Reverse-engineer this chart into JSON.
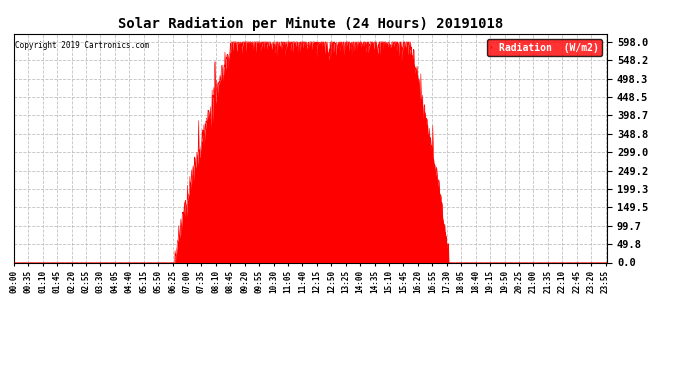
{
  "title": "Solar Radiation per Minute (24 Hours) 20191018",
  "copyright_text": "Copyright 2019 Cartronics.com",
  "legend_label": "Radiation  (W/m2)",
  "bar_color": "#ff0000",
  "background_color": "#ffffff",
  "grid_color": "#bbbbbb",
  "y_tick_values": [
    0.0,
    49.8,
    99.7,
    149.5,
    199.3,
    249.2,
    299.0,
    348.8,
    398.7,
    448.5,
    498.3,
    548.2,
    598.0
  ],
  "ylim": [
    0.0,
    620.0
  ],
  "total_minutes": 1440,
  "solar_start_minute": 390,
  "solar_rise_end_minute": 490,
  "solar_plateau_start": 530,
  "solar_plateau_end": 960,
  "solar_fall_start": 990,
  "solar_end_minute": 1055,
  "peak_value": 598.0,
  "x_tick_labels": [
    "00:00",
    "00:35",
    "01:10",
    "01:45",
    "02:20",
    "02:55",
    "03:30",
    "04:05",
    "04:40",
    "05:15",
    "05:50",
    "06:25",
    "07:00",
    "07:35",
    "08:10",
    "08:45",
    "09:20",
    "09:55",
    "10:30",
    "11:05",
    "11:40",
    "12:15",
    "12:50",
    "13:25",
    "14:00",
    "14:35",
    "15:10",
    "15:45",
    "16:20",
    "16:55",
    "17:30",
    "18:05",
    "18:40",
    "19:15",
    "19:50",
    "20:25",
    "21:00",
    "21:35",
    "22:10",
    "22:45",
    "23:20",
    "23:55"
  ],
  "x_tick_positions_minutes": [
    0,
    35,
    70,
    105,
    140,
    175,
    210,
    245,
    280,
    315,
    350,
    385,
    420,
    455,
    490,
    525,
    560,
    595,
    630,
    665,
    700,
    735,
    770,
    805,
    840,
    875,
    910,
    945,
    980,
    1015,
    1050,
    1085,
    1120,
    1155,
    1190,
    1225,
    1260,
    1295,
    1330,
    1365,
    1400,
    1435
  ],
  "figwidth": 6.9,
  "figheight": 3.75,
  "dpi": 100
}
